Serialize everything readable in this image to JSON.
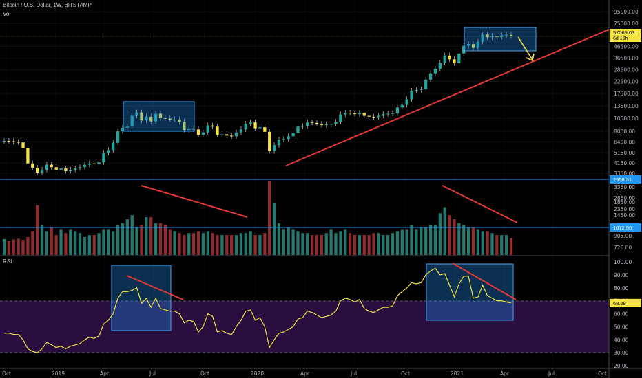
{
  "header": {
    "symbol_line": "Bitcoin / U.S. Dollar, 1W, BITSTAMP",
    "volume_label": "Vol",
    "rsi_label": "RSI"
  },
  "colors": {
    "up": "#26a69a",
    "down": "#ef5350",
    "wick_up": "#e8e8e8",
    "candle_fill_up": "#26a69a",
    "candle_fill_down": "#f5e342",
    "trendline": "#e53935",
    "box_fill": "#1e88e5",
    "box_stroke": "#42a5f5",
    "arrow": "#f5e342",
    "rsi_line": "#f5e342",
    "rsi_band": "#2a0e40",
    "hline": "#2196f3",
    "price_tag": "#f5e342"
  },
  "chart_data": [
    {
      "type": "candlestick",
      "title": "Bitcoin / U.S. Dollar, 1W, BITSTAMP",
      "scale": "log",
      "y_ticks": [
        95000,
        75000,
        57069.03,
        46500,
        36500,
        28500,
        22500,
        17500,
        13500,
        10500,
        8000,
        6400,
        5150,
        4150,
        3350
      ],
      "current_price_label": "57069.03",
      "countdown_label": "6d 15h",
      "x_ticks": [
        "Oct",
        "2019",
        "Apr",
        "Jul",
        "Oct",
        "2020",
        "Apr",
        "Jul",
        "Oct",
        "2021",
        "Apr",
        "Jul",
        "Oct"
      ],
      "closes": [
        6550,
        6500,
        6400,
        6350,
        5600,
        4100,
        3750,
        3400,
        3600,
        4000,
        3800,
        3600,
        3700,
        3500,
        3600,
        3700,
        3800,
        4000,
        4100,
        4050,
        4200,
        5100,
        5400,
        6300,
        8000,
        8600,
        8800,
        11000,
        11800,
        10000,
        10800,
        9800,
        11500,
        10500,
        10400,
        10200,
        10200,
        9700,
        8200,
        8400,
        8300,
        7400,
        7800,
        9000,
        8800,
        7400,
        7500,
        7300,
        7200,
        7800,
        8300,
        9300,
        9600,
        8500,
        8700,
        7900,
        5300,
        6000,
        6700,
        6800,
        7200,
        7700,
        8800,
        8900,
        9600,
        9500,
        9300,
        9100,
        9200,
        9300,
        9700,
        11300,
        11700,
        11600,
        11400,
        11700,
        11000,
        10800,
        10700,
        11000,
        11400,
        11500,
        11600,
        13100,
        13800,
        15500,
        18500,
        18800,
        19100,
        23300,
        26500,
        29200,
        33000,
        38400,
        35500,
        32800,
        40000,
        47000,
        48700,
        45000,
        51000,
        59200,
        56000,
        57500,
        56200,
        58500,
        59000,
        57069
      ]
    },
    {
      "type": "bar",
      "title": "Vol",
      "y_ticks": [
        3350,
        2850,
        2350,
        1850,
        1450,
        1072.56,
        905,
        725
      ],
      "hline_label": "2958.31",
      "level_label": "1072.56",
      "volumes": [
        800,
        700,
        780,
        820,
        760,
        900,
        1200,
        2500,
        1500,
        1200,
        1400,
        1000,
        1300,
        1100,
        1300,
        1200,
        1100,
        900,
        1000,
        1000,
        1100,
        1300,
        1300,
        1200,
        1500,
        1600,
        1800,
        2000,
        1400,
        1500,
        1900,
        1900,
        1600,
        1600,
        1500,
        1300,
        1200,
        1100,
        1000,
        1100,
        1100,
        1200,
        1100,
        1200,
        1100,
        1000,
        1000,
        1000,
        1000,
        1000,
        1100,
        1100,
        1200,
        1000,
        1000,
        1100,
        3700,
        2600,
        1600,
        1300,
        1400,
        1300,
        1200,
        1100,
        1100,
        1000,
        1000,
        1000,
        1100,
        1300,
        1100,
        1200,
        1300,
        1100,
        1000,
        1000,
        1000,
        1000,
        1100,
        1100,
        1000,
        1000,
        1100,
        1200,
        1300,
        1300,
        1500,
        1300,
        1400,
        1400,
        1500,
        1500,
        2100,
        2400,
        2000,
        1800,
        1600,
        1500,
        1400,
        1400,
        1300,
        1200,
        1200,
        1100,
        1000,
        1000,
        1000,
        850
      ]
    },
    {
      "type": "line",
      "title": "RSI",
      "y_ticks": [
        100,
        90,
        80,
        70,
        60,
        50,
        40,
        30,
        20
      ],
      "ylim": [
        20,
        100
      ],
      "band": [
        30,
        70
      ],
      "current_label": "68.29",
      "values": [
        45,
        45,
        44,
        44,
        40,
        33,
        31,
        30,
        33,
        38,
        36,
        34,
        35,
        33,
        35,
        36,
        37,
        40,
        42,
        41,
        43,
        52,
        55,
        60,
        72,
        77,
        77,
        78,
        80,
        68,
        72,
        65,
        72,
        64,
        63,
        62,
        62,
        60,
        53,
        55,
        54,
        46,
        50,
        60,
        58,
        46,
        47,
        45,
        44,
        50,
        55,
        62,
        63,
        55,
        57,
        50,
        34,
        40,
        45,
        46,
        48,
        50,
        56,
        57,
        62,
        61,
        59,
        57,
        58,
        59,
        62,
        70,
        72,
        71,
        69,
        71,
        64,
        62,
        61,
        63,
        65,
        65,
        66,
        74,
        77,
        80,
        84,
        83,
        84,
        90,
        93,
        95,
        90,
        91,
        82,
        73,
        83,
        89,
        89,
        72,
        73,
        82,
        74,
        72,
        70,
        70,
        69,
        68.3
      ]
    }
  ]
}
